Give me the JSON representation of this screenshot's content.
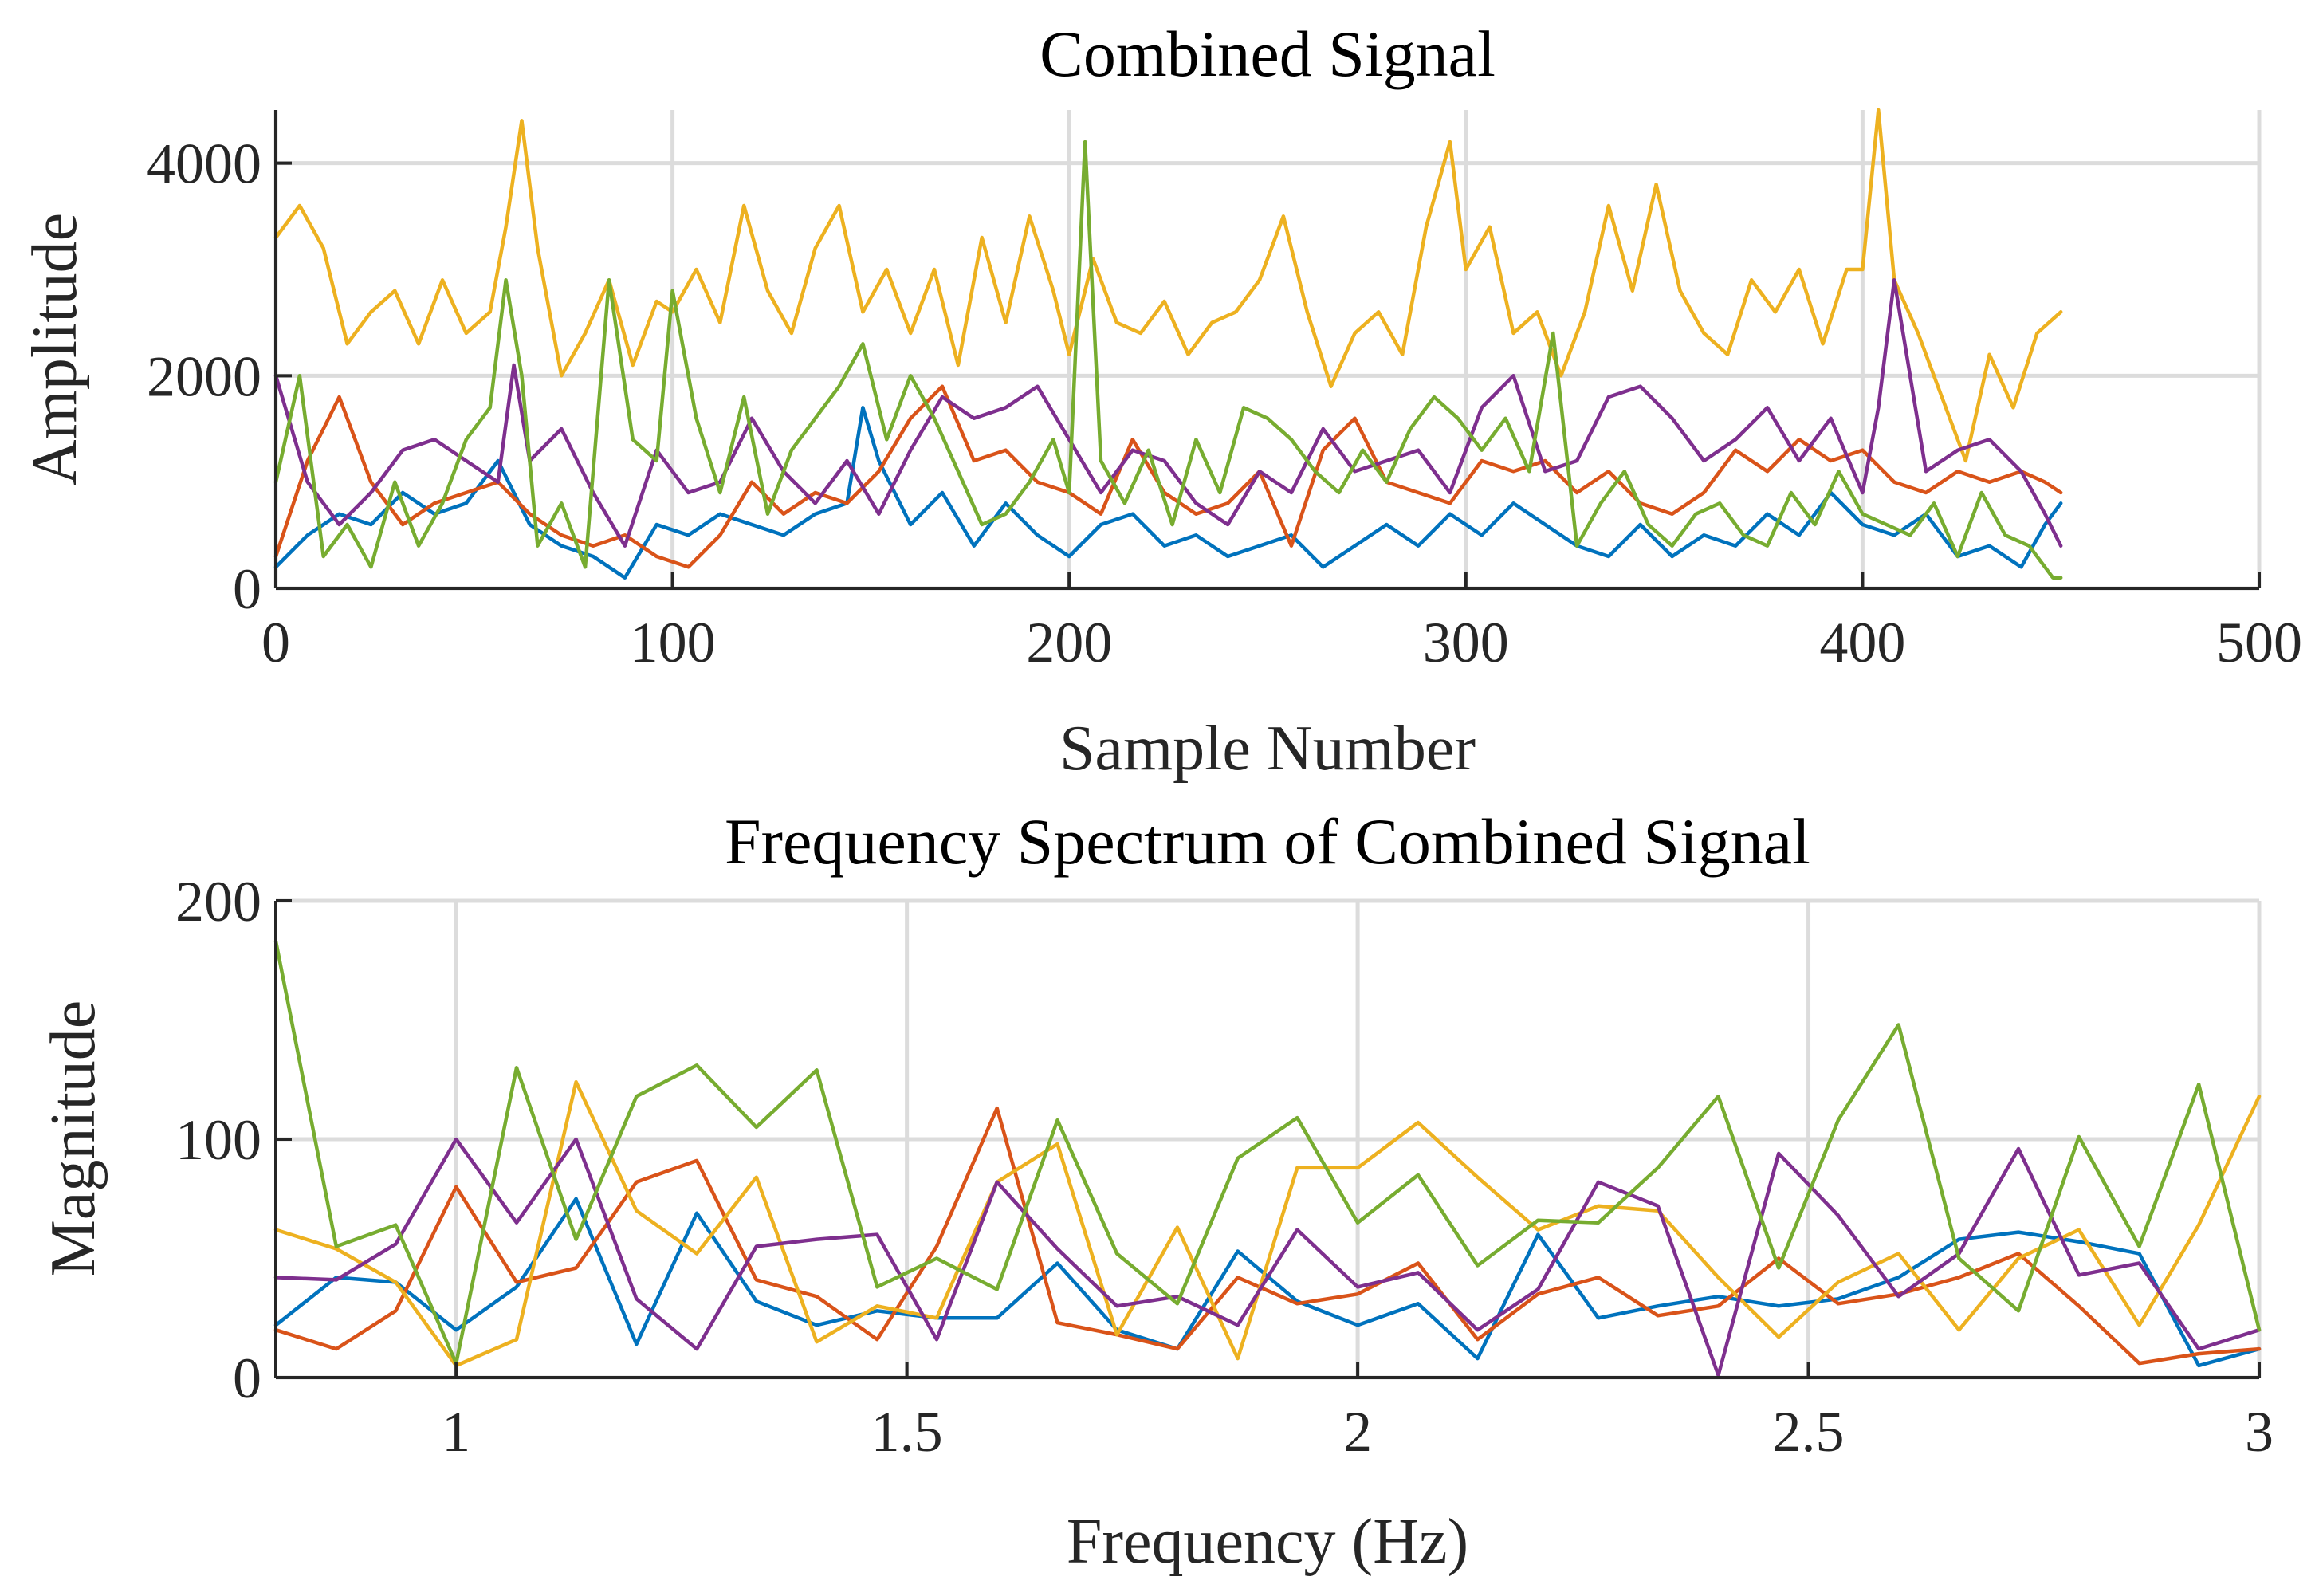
{
  "chart_data": [
    {
      "id": "time",
      "type": "line",
      "title": "Combined Signal",
      "xlabel": "Sample Number",
      "ylabel": "Amplitude",
      "xlim": [
        0,
        500
      ],
      "ylim": [
        0,
        4500
      ],
      "xticks": [
        0,
        100,
        200,
        300,
        400,
        500
      ],
      "yticks": [
        0,
        2000,
        4000
      ],
      "xtick_labels": [
        "0",
        "100",
        "200",
        "300",
        "400",
        "500"
      ],
      "ytick_labels": [
        "0",
        "2000",
        "4000"
      ],
      "grid": true,
      "series": [
        {
          "name": "series-blue",
          "color": "#0072BD",
          "x": [
            0,
            8,
            16,
            24,
            32,
            40,
            48,
            56,
            64,
            72,
            80,
            88,
            96,
            104,
            112,
            120,
            128,
            136,
            144,
            148,
            152,
            160,
            168,
            176,
            184,
            192,
            200,
            208,
            216,
            224,
            232,
            240,
            248,
            256,
            264,
            272,
            280,
            288,
            296,
            304,
            312,
            320,
            328,
            336,
            344,
            352,
            360,
            368,
            376,
            384,
            392,
            400,
            408,
            416,
            424,
            432,
            440,
            446,
            450
          ],
          "values": [
            200,
            500,
            700,
            600,
            900,
            700,
            800,
            1200,
            600,
            400,
            300,
            100,
            600,
            500,
            700,
            600,
            500,
            700,
            800,
            1700,
            1200,
            600,
            900,
            400,
            800,
            500,
            300,
            600,
            700,
            400,
            500,
            300,
            400,
            500,
            200,
            400,
            600,
            400,
            700,
            500,
            800,
            600,
            400,
            300,
            600,
            300,
            500,
            400,
            700,
            500,
            900,
            600,
            500,
            700,
            300,
            400,
            200,
            600,
            800
          ]
        },
        {
          "name": "series-red",
          "color": "#D95319",
          "x": [
            0,
            8,
            16,
            24,
            32,
            40,
            48,
            56,
            64,
            72,
            80,
            88,
            96,
            104,
            112,
            120,
            128,
            136,
            144,
            152,
            160,
            168,
            176,
            184,
            192,
            200,
            208,
            216,
            224,
            232,
            240,
            248,
            256,
            264,
            272,
            280,
            288,
            296,
            304,
            312,
            320,
            328,
            336,
            344,
            352,
            360,
            368,
            376,
            384,
            392,
            400,
            408,
            416,
            424,
            432,
            440,
            446,
            450
          ],
          "values": [
            300,
            1200,
            1800,
            1000,
            600,
            800,
            900,
            1000,
            700,
            500,
            400,
            500,
            300,
            200,
            500,
            1000,
            700,
            900,
            800,
            1100,
            1600,
            1900,
            1200,
            1300,
            1000,
            900,
            700,
            1400,
            900,
            700,
            800,
            1100,
            400,
            1300,
            1600,
            1000,
            900,
            800,
            1200,
            1100,
            1200,
            900,
            1100,
            800,
            700,
            900,
            1300,
            1100,
            1400,
            1200,
            1300,
            1000,
            900,
            1100,
            1000,
            1100,
            1000,
            900
          ]
        },
        {
          "name": "series-yellow",
          "color": "#EDB120",
          "x": [
            0,
            6,
            12,
            18,
            24,
            30,
            36,
            42,
            48,
            54,
            58,
            62,
            66,
            72,
            78,
            84,
            90,
            96,
            100,
            106,
            112,
            118,
            124,
            130,
            136,
            142,
            148,
            154,
            160,
            166,
            172,
            178,
            184,
            190,
            196,
            200,
            206,
            212,
            218,
            224,
            230,
            236,
            242,
            248,
            254,
            260,
            266,
            272,
            278,
            284,
            290,
            296,
            300,
            306,
            312,
            318,
            324,
            330,
            336,
            342,
            348,
            354,
            360,
            366,
            372,
            378,
            384,
            390,
            396,
            400,
            404,
            408,
            414,
            420,
            426,
            432,
            438,
            444,
            450
          ],
          "values": [
            3300,
            3600,
            3200,
            2300,
            2600,
            2800,
            2300,
            2900,
            2400,
            2600,
            3400,
            4400,
            3200,
            2000,
            2400,
            2900,
            2100,
            2700,
            2600,
            3000,
            2500,
            3600,
            2800,
            2400,
            3200,
            3600,
            2600,
            3000,
            2400,
            3000,
            2100,
            3300,
            2500,
            3500,
            2800,
            2200,
            3100,
            2500,
            2400,
            2700,
            2200,
            2500,
            2600,
            2900,
            3500,
            2600,
            1900,
            2400,
            2600,
            2200,
            3400,
            4200,
            3000,
            3400,
            2400,
            2600,
            2000,
            2600,
            3600,
            2800,
            3800,
            2800,
            2400,
            2200,
            2900,
            2600,
            3000,
            2300,
            3000,
            3000,
            4500,
            2900,
            2400,
            1800,
            1200,
            2200,
            1700,
            2400,
            2600
          ]
        },
        {
          "name": "series-purple",
          "color": "#7E2F8E",
          "x": [
            0,
            8,
            16,
            24,
            32,
            40,
            48,
            56,
            60,
            64,
            72,
            80,
            88,
            96,
            104,
            112,
            120,
            128,
            136,
            144,
            152,
            160,
            168,
            176,
            184,
            192,
            200,
            208,
            216,
            224,
            232,
            240,
            248,
            256,
            264,
            272,
            280,
            288,
            296,
            304,
            312,
            320,
            328,
            336,
            344,
            352,
            360,
            368,
            376,
            384,
            392,
            400,
            404,
            408,
            416,
            424,
            432,
            440,
            446,
            450
          ],
          "values": [
            2000,
            1000,
            600,
            900,
            1300,
            1400,
            1200,
            1000,
            2100,
            1200,
            1500,
            900,
            400,
            1300,
            900,
            1000,
            1600,
            1100,
            800,
            1200,
            700,
            1300,
            1800,
            1600,
            1700,
            1900,
            1400,
            900,
            1300,
            1200,
            800,
            600,
            1100,
            900,
            1500,
            1100,
            1200,
            1300,
            900,
            1700,
            2000,
            1100,
            1200,
            1800,
            1900,
            1600,
            1200,
            1400,
            1700,
            1200,
            1600,
            900,
            1700,
            2900,
            1100,
            1300,
            1400,
            1100,
            700,
            400
          ]
        },
        {
          "name": "series-green",
          "color": "#77AC30",
          "x": [
            0,
            6,
            12,
            18,
            24,
            30,
            36,
            42,
            48,
            54,
            58,
            62,
            66,
            72,
            78,
            84,
            90,
            96,
            100,
            106,
            112,
            118,
            124,
            130,
            136,
            142,
            148,
            154,
            160,
            166,
            172,
            178,
            184,
            190,
            196,
            200,
            204,
            208,
            214,
            220,
            226,
            232,
            238,
            244,
            250,
            256,
            262,
            268,
            274,
            280,
            286,
            292,
            298,
            304,
            310,
            316,
            322,
            328,
            334,
            340,
            346,
            352,
            358,
            364,
            370,
            376,
            382,
            388,
            394,
            400,
            406,
            412,
            418,
            424,
            430,
            436,
            442,
            448,
            450
          ],
          "values": [
            1000,
            2000,
            300,
            600,
            200,
            1000,
            400,
            800,
            1400,
            1700,
            2900,
            2000,
            400,
            800,
            200,
            2900,
            1400,
            1200,
            2800,
            1600,
            900,
            1800,
            700,
            1300,
            1600,
            1900,
            2300,
            1400,
            2000,
            1600,
            1100,
            600,
            700,
            1000,
            1400,
            900,
            4200,
            1200,
            800,
            1300,
            600,
            1400,
            900,
            1700,
            1600,
            1400,
            1100,
            900,
            1300,
            1000,
            1500,
            1800,
            1600,
            1300,
            1600,
            1100,
            2400,
            400,
            800,
            1100,
            600,
            400,
            700,
            800,
            500,
            400,
            900,
            600,
            1100,
            700,
            600,
            500,
            800,
            300,
            900,
            500,
            400,
            100,
            100
          ]
        }
      ]
    },
    {
      "id": "freq",
      "type": "line",
      "title": "Frequency Spectrum of Combined Signal",
      "xlabel": "Frequency (Hz)",
      "ylabel": "Magnitude",
      "xlim": [
        0.8,
        3
      ],
      "ylim": [
        0,
        200
      ],
      "xticks": [
        1,
        1.5,
        2,
        2.5,
        3
      ],
      "yticks": [
        0,
        100,
        200
      ],
      "xtick_labels": [
        "1",
        "1.5",
        "2",
        "2.5",
        "3"
      ],
      "ytick_labels": [
        "0",
        "100",
        "200"
      ],
      "grid": true,
      "x": [
        0.8,
        0.867,
        0.933,
        1.0,
        1.067,
        1.133,
        1.2,
        1.267,
        1.333,
        1.4,
        1.467,
        1.533,
        1.6,
        1.667,
        1.733,
        1.8,
        1.867,
        1.933,
        2.0,
        2.067,
        2.133,
        2.2,
        2.267,
        2.333,
        2.4,
        2.467,
        2.533,
        2.6,
        2.667,
        2.733,
        2.8,
        2.867,
        2.933,
        3.0
      ],
      "series": [
        {
          "name": "series-blue",
          "color": "#0072BD",
          "values": [
            22,
            42,
            40,
            20,
            38,
            75,
            14,
            69,
            32,
            22,
            28,
            25,
            25,
            48,
            20,
            12,
            53,
            32,
            22,
            31,
            8,
            60,
            25,
            30,
            34,
            30,
            33,
            42,
            58,
            61,
            57,
            52,
            5,
            12
          ]
        },
        {
          "name": "series-red",
          "color": "#D95319",
          "values": [
            20,
            12,
            28,
            80,
            40,
            46,
            82,
            91,
            41,
            34,
            16,
            55,
            113,
            23,
            18,
            12,
            42,
            31,
            35,
            48,
            16,
            35,
            42,
            26,
            30,
            50,
            31,
            35,
            42,
            52,
            30,
            6,
            10,
            12
          ]
        },
        {
          "name": "series-yellow",
          "color": "#EDB120",
          "values": [
            62,
            54,
            40,
            5,
            16,
            124,
            70,
            52,
            84,
            15,
            30,
            25,
            82,
            98,
            18,
            63,
            8,
            88,
            88,
            107,
            84,
            62,
            72,
            70,
            42,
            17,
            40,
            52,
            20,
            50,
            62,
            22,
            64,
            118
          ]
        },
        {
          "name": "series-purple",
          "color": "#7E2F8E",
          "values": [
            42,
            41,
            56,
            100,
            65,
            100,
            33,
            12,
            55,
            58,
            60,
            16,
            82,
            54,
            30,
            34,
            22,
            62,
            38,
            44,
            20,
            37,
            82,
            72,
            1,
            94,
            68,
            34,
            52,
            96,
            43,
            48,
            12,
            20
          ]
        },
        {
          "name": "series-green",
          "color": "#77AC30",
          "values": [
            183,
            55,
            64,
            6,
            130,
            58,
            118,
            131,
            105,
            129,
            38,
            50,
            37,
            108,
            52,
            31,
            92,
            109,
            65,
            85,
            47,
            66,
            65,
            88,
            118,
            46,
            108,
            148,
            50,
            28,
            101,
            55,
            123,
            20
          ]
        }
      ]
    }
  ]
}
